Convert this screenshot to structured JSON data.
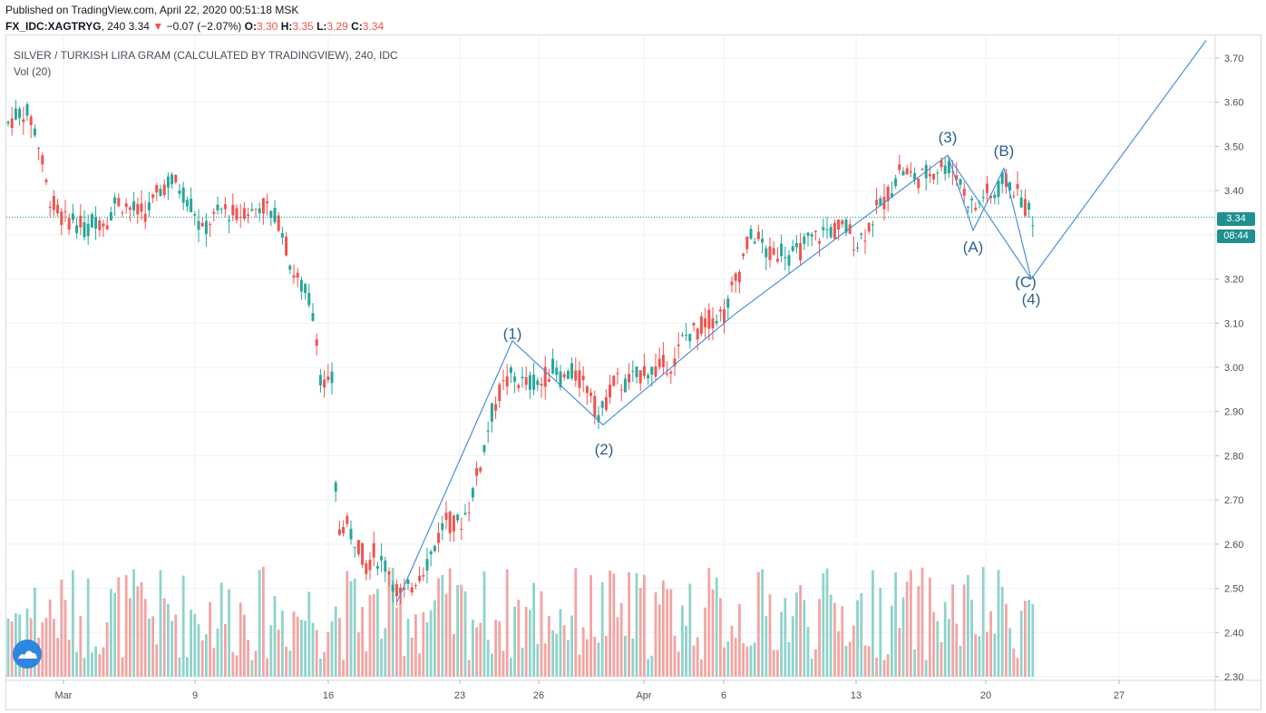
{
  "header": {
    "published": "Published on TradingView.com, April 22, 2020 00:51:18 MSK",
    "symbol": "FX_IDC:XAGTRYG",
    "interval": "240",
    "last": "3.34",
    "change_arrow": "▼",
    "change": "−0.07 (−2.07%)",
    "o_label": "O:",
    "o_value": "3.30",
    "h_label": "H:",
    "h_value": "3.35",
    "l_label": "L:",
    "l_value": "3.29",
    "c_label": "C:",
    "c_value": "3.34"
  },
  "series_title": "SILVER / TURKISH LIRA GRAM (CALCULATED BY TRADINGVIEW), 240, IDC",
  "volume_label": "Vol (20)",
  "price_tags": {
    "last_price": "3.34",
    "countdown": "08:44"
  },
  "colors": {
    "up": "#26a69a",
    "down": "#ef5350",
    "vol_up": "#8fd3cb",
    "vol_down": "#f3a4a2",
    "wave_line": "#4a90d9",
    "wave_text": "#2d5f8e",
    "grid": "#eef0f3",
    "last_line": "#1f8f8f"
  },
  "icons": [
    "tradingview-logo-icon"
  ],
  "chart_data": {
    "type": "candlestick",
    "y_axis": {
      "min": 2.3,
      "max": 3.7,
      "ticks": [
        "3.70",
        "3.60",
        "3.50",
        "3.40",
        "3.30",
        "3.20",
        "3.10",
        "3.00",
        "2.90",
        "2.80",
        "2.70",
        "2.60",
        "2.50",
        "2.40",
        "2.30"
      ]
    },
    "x_axis": {
      "ticks": [
        {
          "label": "Mar",
          "x": 70
        },
        {
          "label": "9",
          "x": 215
        },
        {
          "label": "16",
          "x": 362
        },
        {
          "label": "23",
          "x": 507
        },
        {
          "label": "26",
          "x": 594
        },
        {
          "label": "Apr",
          "x": 710
        },
        {
          "label": "6",
          "x": 798
        },
        {
          "label": "13",
          "x": 944
        },
        {
          "label": "20",
          "x": 1087
        },
        {
          "label": "27",
          "x": 1234
        }
      ]
    },
    "last_price": 3.34,
    "price_path": [
      [
        8,
        3.55
      ],
      [
        16,
        3.57
      ],
      [
        24,
        3.58
      ],
      [
        32,
        3.57
      ],
      [
        40,
        3.53
      ],
      [
        46,
        3.47
      ],
      [
        52,
        3.4
      ],
      [
        58,
        3.37
      ],
      [
        64,
        3.35
      ],
      [
        72,
        3.33
      ],
      [
        80,
        3.34
      ],
      [
        88,
        3.32
      ],
      [
        96,
        3.31
      ],
      [
        104,
        3.34
      ],
      [
        112,
        3.33
      ],
      [
        120,
        3.34
      ],
      [
        128,
        3.38
      ],
      [
        136,
        3.37
      ],
      [
        144,
        3.36
      ],
      [
        152,
        3.35
      ],
      [
        160,
        3.35
      ],
      [
        168,
        3.37
      ],
      [
        176,
        3.4
      ],
      [
        184,
        3.42
      ],
      [
        192,
        3.42
      ],
      [
        200,
        3.4
      ],
      [
        208,
        3.38
      ],
      [
        216,
        3.35
      ],
      [
        222,
        3.3
      ],
      [
        230,
        3.33
      ],
      [
        238,
        3.34
      ],
      [
        246,
        3.36
      ],
      [
        254,
        3.35
      ],
      [
        262,
        3.34
      ],
      [
        270,
        3.36
      ],
      [
        278,
        3.35
      ],
      [
        286,
        3.37
      ],
      [
        294,
        3.36
      ],
      [
        302,
        3.34
      ],
      [
        310,
        3.33
      ],
      [
        318,
        3.25
      ],
      [
        326,
        3.2
      ],
      [
        334,
        3.18
      ],
      [
        342,
        3.15
      ],
      [
        348,
        3.1
      ],
      [
        354,
        2.97
      ],
      [
        360,
        2.95
      ],
      [
        366,
        2.97
      ],
      [
        372,
        2.62
      ],
      [
        380,
        2.65
      ],
      [
        388,
        2.62
      ],
      [
        396,
        2.6
      ],
      [
        404,
        2.55
      ],
      [
        412,
        2.58
      ],
      [
        420,
        2.56
      ],
      [
        428,
        2.55
      ],
      [
        436,
        2.5
      ],
      [
        444,
        2.48
      ],
      [
        452,
        2.5
      ],
      [
        460,
        2.53
      ],
      [
        468,
        2.55
      ],
      [
        476,
        2.58
      ],
      [
        484,
        2.62
      ],
      [
        492,
        2.66
      ],
      [
        500,
        2.64
      ],
      [
        508,
        2.65
      ],
      [
        516,
        2.68
      ],
      [
        524,
        2.74
      ],
      [
        532,
        2.8
      ],
      [
        540,
        2.88
      ],
      [
        548,
        2.93
      ],
      [
        556,
        2.96
      ],
      [
        564,
        2.98
      ],
      [
        572,
        2.97
      ],
      [
        580,
        2.96
      ],
      [
        588,
        2.97
      ],
      [
        596,
        2.96
      ],
      [
        604,
        2.99
      ],
      [
        612,
        3.0
      ],
      [
        620,
        2.97
      ],
      [
        628,
        2.99
      ],
      [
        636,
        2.98
      ],
      [
        644,
        2.96
      ],
      [
        652,
        2.95
      ],
      [
        658,
        2.89
      ],
      [
        664,
        2.9
      ],
      [
        672,
        2.95
      ],
      [
        680,
        2.97
      ],
      [
        688,
        2.96
      ],
      [
        696,
        2.97
      ],
      [
        704,
        2.98
      ],
      [
        712,
        3.0
      ],
      [
        720,
        2.99
      ],
      [
        728,
        3.0
      ],
      [
        736,
        3.01
      ],
      [
        744,
        3.01
      ],
      [
        752,
        3.06
      ],
      [
        760,
        3.08
      ],
      [
        768,
        3.08
      ],
      [
        776,
        3.1
      ],
      [
        784,
        3.11
      ],
      [
        792,
        3.12
      ],
      [
        800,
        3.12
      ],
      [
        808,
        3.18
      ],
      [
        816,
        3.22
      ],
      [
        824,
        3.28
      ],
      [
        832,
        3.3
      ],
      [
        840,
        3.28
      ],
      [
        848,
        3.25
      ],
      [
        856,
        3.26
      ],
      [
        864,
        3.27
      ],
      [
        872,
        3.25
      ],
      [
        880,
        3.26
      ],
      [
        888,
        3.28
      ],
      [
        896,
        3.29
      ],
      [
        904,
        3.3
      ],
      [
        912,
        3.31
      ],
      [
        920,
        3.31
      ],
      [
        928,
        3.32
      ],
      [
        936,
        3.31
      ],
      [
        944,
        3.28
      ],
      [
        952,
        3.3
      ],
      [
        960,
        3.33
      ],
      [
        968,
        3.36
      ],
      [
        976,
        3.38
      ],
      [
        984,
        3.41
      ],
      [
        992,
        3.45
      ],
      [
        1000,
        3.44
      ],
      [
        1008,
        3.43
      ],
      [
        1016,
        3.43
      ],
      [
        1024,
        3.44
      ],
      [
        1032,
        3.45
      ],
      [
        1040,
        3.46
      ],
      [
        1048,
        3.45
      ],
      [
        1056,
        3.44
      ],
      [
        1062,
        3.4
      ],
      [
        1070,
        3.37
      ],
      [
        1078,
        3.36
      ],
      [
        1086,
        3.4
      ],
      [
        1094,
        3.38
      ],
      [
        1100,
        3.4
      ],
      [
        1106,
        3.42
      ],
      [
        1112,
        3.42
      ],
      [
        1120,
        3.4
      ],
      [
        1126,
        3.38
      ],
      [
        1132,
        3.36
      ],
      [
        1138,
        3.34
      ],
      [
        1144,
        3.34
      ]
    ],
    "volume_max": 2.55,
    "wave_lines": [
      [
        [
          438,
          2.47
        ],
        [
          565,
          3.06
        ],
        [
          665,
          2.87
        ],
        [
          810,
          3.12
        ],
        [
          1045,
          3.48
        ],
        [
          1073,
          3.31
        ],
        [
          1107,
          3.45
        ],
        [
          1137,
          3.2
        ],
        [
          1330,
          3.74
        ]
      ],
      [
        [
          1045,
          3.48
        ],
        [
          1137,
          3.2
        ]
      ]
    ],
    "wave_labels": [
      {
        "text": "(1)",
        "x": 565,
        "price": 3.04,
        "dy": -12
      },
      {
        "text": "(2)",
        "x": 666,
        "price": 2.86,
        "dy": 28
      },
      {
        "text": "(3)",
        "x": 1045,
        "price": 3.48,
        "dy": -14
      },
      {
        "text": "(A)",
        "x": 1073,
        "price": 3.31,
        "dy": 24
      },
      {
        "text": "(B)",
        "x": 1107,
        "price": 3.45,
        "dy": -14
      },
      {
        "text": "(C)",
        "x": 1131,
        "price": 3.21,
        "dy": 14
      },
      {
        "text": "(4)",
        "x": 1137,
        "price": 3.2,
        "dy": 28
      }
    ]
  }
}
